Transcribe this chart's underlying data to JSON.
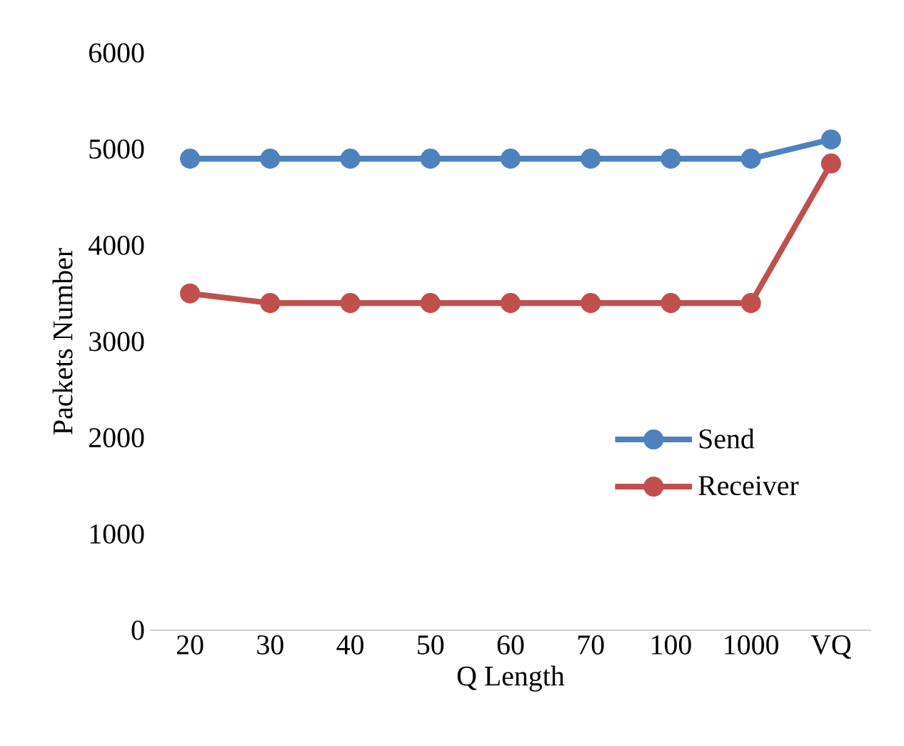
{
  "chart_data": {
    "type": "line",
    "xlabel": "Q Length",
    "ylabel": "Packets Number",
    "categories": [
      "20",
      "30",
      "40",
      "50",
      "60",
      "70",
      "100",
      "1000",
      "VQ"
    ],
    "series": [
      {
        "name": "Send",
        "color": "#4f81bd",
        "values": [
          4900,
          4900,
          4900,
          4900,
          4900,
          4900,
          4900,
          4900,
          5100
        ]
      },
      {
        "name": "Receiver",
        "color": "#c0504d",
        "values": [
          3500,
          3400,
          3400,
          3400,
          3400,
          3400,
          3400,
          3400,
          4850
        ]
      }
    ],
    "ylim": [
      0,
      6000
    ],
    "yticks": [
      0,
      1000,
      2000,
      3000,
      4000,
      5000,
      6000
    ],
    "grid": false,
    "legend": "right",
    "marker": "circle",
    "line_style": "solid"
  }
}
